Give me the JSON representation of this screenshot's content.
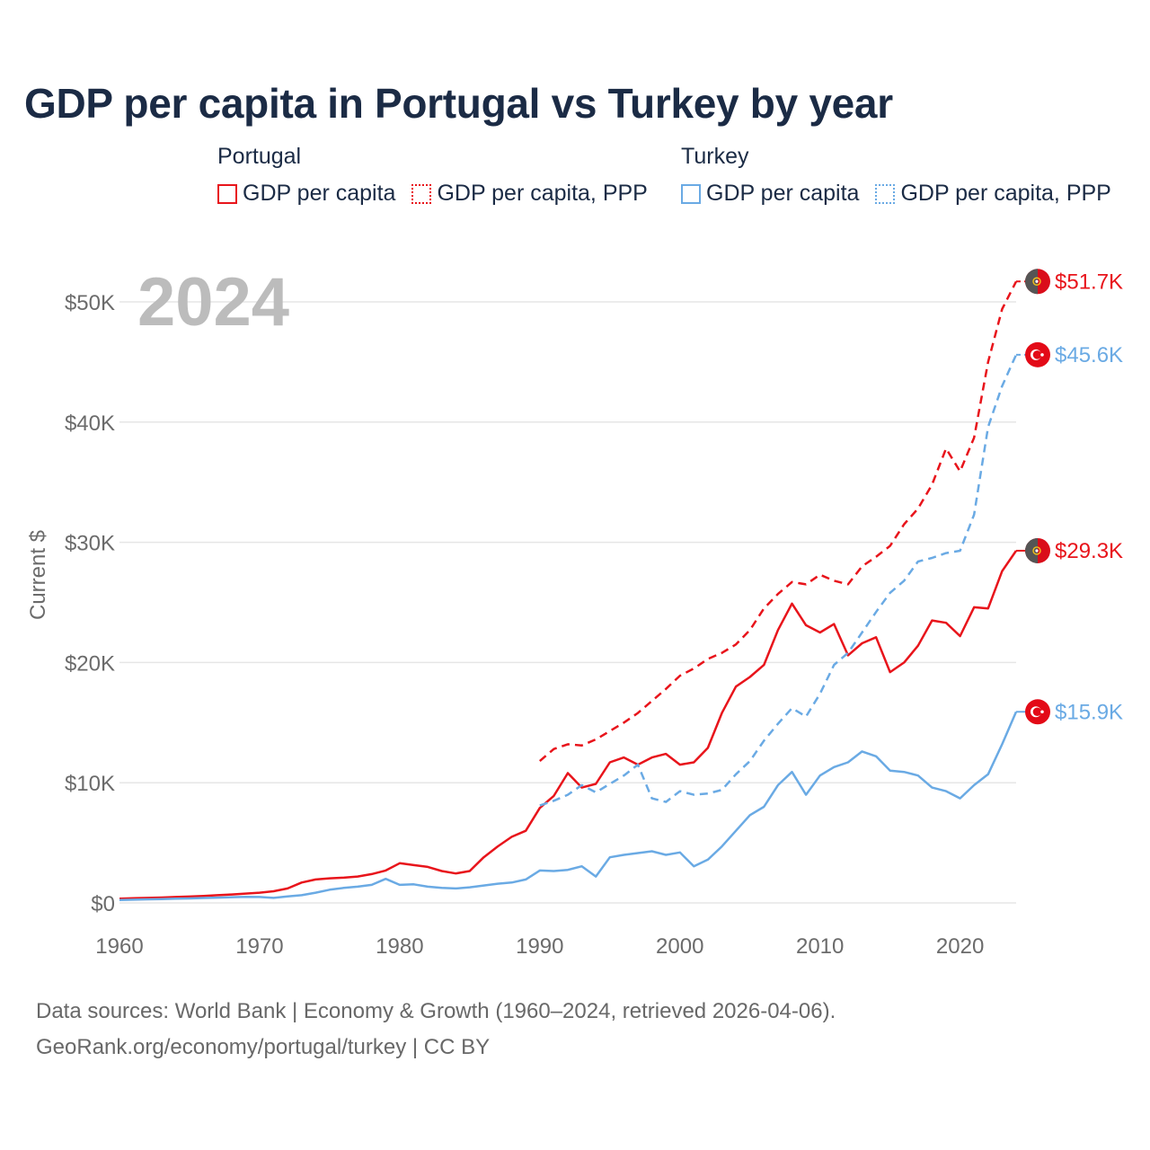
{
  "title": "GDP per capita in Portugal vs Turkey by year",
  "legend": {
    "groups": [
      {
        "title": "Portugal",
        "items": [
          {
            "label": "GDP per capita",
            "color": "#e8141b",
            "style": "solid"
          },
          {
            "label": "GDP per capita, PPP",
            "color": "#e8141b",
            "style": "dotted"
          }
        ]
      },
      {
        "title": "Turkey",
        "items": [
          {
            "label": "GDP per capita",
            "color": "#6aaae4",
            "style": "solid"
          },
          {
            "label": "GDP per capita, PPP",
            "color": "#6aaae4",
            "style": "dotted"
          }
        ]
      }
    ]
  },
  "footer": {
    "sources": "Data sources: World Bank | Economy & Growth (1960–2024, retrieved 2026-04-06).",
    "credit": "GeoRank.org/economy/portugal/turkey | CC BY"
  },
  "chart_data": {
    "type": "line",
    "year_label": "2024",
    "ylabel": "Current $",
    "xlim": [
      1960,
      2024
    ],
    "ylim": [
      0,
      50000
    ],
    "x_ticks": [
      1960,
      1970,
      1980,
      1990,
      2000,
      2010,
      2020
    ],
    "x_tick_labels": [
      "1960",
      "1970",
      "1980",
      "1990",
      "2000",
      "2010",
      "2020"
    ],
    "y_ticks": [
      0,
      10000,
      20000,
      30000,
      40000,
      50000
    ],
    "y_tick_labels": [
      "$0",
      "$10K",
      "$20K",
      "$30K",
      "$40K",
      "$50K"
    ],
    "series": [
      {
        "name": "Portugal GDP per capita",
        "country": "Portugal",
        "color": "#e8141b",
        "dashed": false,
        "end_label": "$29.3K",
        "x": [
          1960,
          1961,
          1962,
          1963,
          1964,
          1965,
          1966,
          1967,
          1968,
          1969,
          1970,
          1971,
          1972,
          1973,
          1974,
          1975,
          1976,
          1977,
          1978,
          1979,
          1980,
          1981,
          1982,
          1983,
          1984,
          1985,
          1986,
          1987,
          1988,
          1989,
          1990,
          1991,
          1992,
          1993,
          1994,
          1995,
          1996,
          1997,
          1998,
          1999,
          2000,
          2001,
          2002,
          2003,
          2004,
          2005,
          2006,
          2007,
          2008,
          2009,
          2010,
          2011,
          2012,
          2013,
          2014,
          2015,
          2016,
          2017,
          2018,
          2019,
          2020,
          2021,
          2022,
          2023,
          2024
        ],
        "values": [
          360,
          390,
          420,
          450,
          490,
          530,
          580,
          640,
          700,
          780,
          850,
          970,
          1200,
          1700,
          1950,
          2050,
          2100,
          2200,
          2400,
          2700,
          3300,
          3150,
          3000,
          2650,
          2450,
          2650,
          3800,
          4700,
          5500,
          6000,
          7900,
          8900,
          10800,
          9600,
          9900,
          11700,
          12100,
          11500,
          12100,
          12400,
          11500,
          11700,
          12900,
          15800,
          18000,
          18800,
          19800,
          22700,
          24900,
          23100,
          22500,
          23200,
          20600,
          21600,
          22100,
          19200,
          20000,
          21400,
          23500,
          23300,
          22200,
          24600,
          24500,
          27600,
          29300
        ]
      },
      {
        "name": "Portugal GDP per capita, PPP",
        "country": "Portugal",
        "color": "#e8141b",
        "dashed": true,
        "end_label": "$51.7K",
        "x": [
          1990,
          1991,
          1992,
          1993,
          1994,
          1995,
          1996,
          1997,
          1998,
          1999,
          2000,
          2001,
          2002,
          2003,
          2004,
          2005,
          2006,
          2007,
          2008,
          2009,
          2010,
          2011,
          2012,
          2013,
          2014,
          2015,
          2016,
          2017,
          2018,
          2019,
          2020,
          2021,
          2022,
          2023,
          2024
        ],
        "values": [
          11800,
          12800,
          13200,
          13100,
          13600,
          14300,
          15000,
          15800,
          16800,
          17800,
          18900,
          19500,
          20300,
          20800,
          21500,
          22700,
          24500,
          25700,
          26700,
          26500,
          27300,
          26800,
          26500,
          28000,
          28800,
          29700,
          31500,
          32800,
          34800,
          37800,
          35900,
          38700,
          45000,
          49400,
          51700
        ]
      },
      {
        "name": "Turkey GDP per capita",
        "country": "Turkey",
        "color": "#6aaae4",
        "dashed": false,
        "end_label": "$15.9K",
        "x": [
          1960,
          1961,
          1962,
          1963,
          1964,
          1965,
          1966,
          1967,
          1968,
          1969,
          1970,
          1971,
          1972,
          1973,
          1974,
          1975,
          1976,
          1977,
          1978,
          1979,
          1980,
          1981,
          1982,
          1983,
          1984,
          1985,
          1986,
          1987,
          1988,
          1989,
          1990,
          1991,
          1992,
          1993,
          1994,
          1995,
          1996,
          1997,
          1998,
          1999,
          2000,
          2001,
          2002,
          2003,
          2004,
          2005,
          2006,
          2007,
          2008,
          2009,
          2010,
          2011,
          2012,
          2013,
          2014,
          2015,
          2016,
          2017,
          2018,
          2019,
          2020,
          2021,
          2022,
          2023,
          2024
        ],
        "values": [
          250,
          270,
          300,
          320,
          350,
          370,
          410,
          440,
          480,
          500,
          490,
          420,
          540,
          640,
          850,
          1100,
          1250,
          1350,
          1500,
          2000,
          1500,
          1550,
          1350,
          1250,
          1200,
          1300,
          1450,
          1600,
          1700,
          1950,
          2700,
          2650,
          2750,
          3050,
          2200,
          3800,
          4000,
          4150,
          4300,
          4000,
          4200,
          3050,
          3600,
          4700,
          6000,
          7300,
          8000,
          9800,
          10900,
          9000,
          10600,
          11300,
          11700,
          12600,
          12200,
          11000,
          10900,
          10600,
          9600,
          9300,
          8700,
          9800,
          10700,
          13200,
          15900
        ]
      },
      {
        "name": "Turkey GDP per capita, PPP",
        "country": "Turkey",
        "color": "#6aaae4",
        "dashed": true,
        "end_label": "$45.6K",
        "x": [
          1990,
          1991,
          1992,
          1993,
          1994,
          1995,
          1996,
          1997,
          1998,
          1999,
          2000,
          2001,
          2002,
          2003,
          2004,
          2005,
          2006,
          2007,
          2008,
          2009,
          2010,
          2011,
          2012,
          2013,
          2014,
          2015,
          2016,
          2017,
          2018,
          2019,
          2020,
          2021,
          2022,
          2023,
          2024
        ],
        "values": [
          8100,
          8500,
          9000,
          9800,
          9200,
          9900,
          10600,
          11500,
          8700,
          8400,
          9300,
          9000,
          9100,
          9400,
          10700,
          11800,
          13500,
          14900,
          16200,
          15500,
          17400,
          19800,
          20800,
          22500,
          24200,
          25800,
          26800,
          28400,
          28700,
          29100,
          29300,
          32300,
          39600,
          43000,
          45600
        ]
      }
    ]
  }
}
